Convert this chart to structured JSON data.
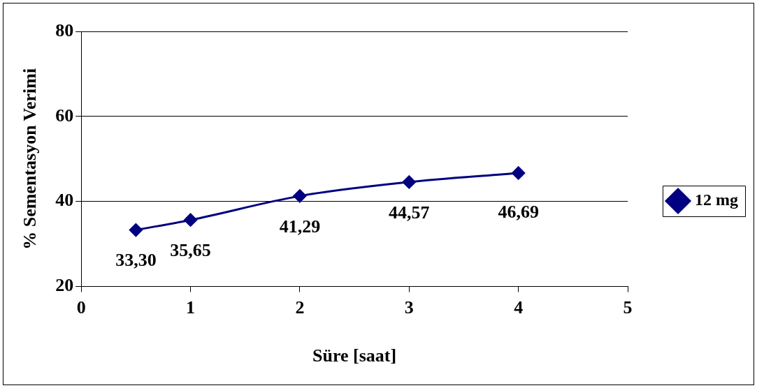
{
  "chart_data": {
    "type": "line",
    "xlabel": "Süre [saat]",
    "ylabel": "% Sementasyon Verimi",
    "x": [
      0.5,
      1,
      2,
      3,
      4
    ],
    "series": [
      {
        "name": "12 mg",
        "color": "#000080",
        "values": [
          33.3,
          35.65,
          41.29,
          44.57,
          46.69
        ],
        "value_labels": [
          "33,30",
          "35,65",
          "41,29",
          "44,57",
          "46,69"
        ]
      }
    ],
    "xlim": [
      0,
      5
    ],
    "xticks": [
      0,
      1,
      2,
      3,
      4,
      5
    ],
    "ylim": [
      20,
      80
    ],
    "yticks": [
      20,
      40,
      60,
      80
    ],
    "grid": "y",
    "legend": "right",
    "marker": "diamond",
    "line_style": "solid"
  }
}
